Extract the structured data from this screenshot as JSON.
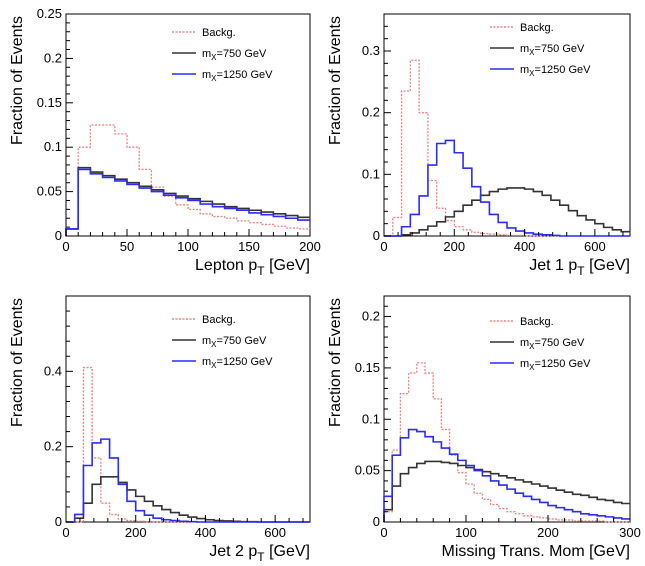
{
  "colors": {
    "background": "#ffffff",
    "axes": "#000000"
  },
  "chart_data": [
    {
      "type": "histogram",
      "xlabel": "Lepton p",
      "xlabel_sub": "T",
      "xlabel_unit": " [GeV]",
      "ylabel": "Fraction of Events",
      "xlim": [
        0,
        200
      ],
      "ylim": [
        0,
        0.25
      ],
      "xticks": [
        0,
        50,
        100,
        150,
        200
      ],
      "yticks": [
        0,
        0.05,
        0.1,
        0.15,
        0.2,
        0.25
      ],
      "ytick_labels": [
        "0",
        "0.05",
        "0.1",
        "0.15",
        "0.2",
        "0.25"
      ],
      "bin_edges": [
        0,
        10,
        20,
        30,
        40,
        50,
        60,
        70,
        80,
        90,
        100,
        110,
        120,
        130,
        140,
        150,
        160,
        170,
        180,
        190,
        200
      ],
      "legend_position": "top-right",
      "series": [
        {
          "name": "Backg.",
          "color": "#f08080",
          "dashed": true,
          "values": [
            0.008,
            0.1,
            0.125,
            0.125,
            0.115,
            0.1,
            0.075,
            0.055,
            0.045,
            0.035,
            0.03,
            0.025,
            0.022,
            0.02,
            0.017,
            0.015,
            0.013,
            0.011,
            0.009,
            0.008
          ]
        },
        {
          "name": "m_X=750 GeV",
          "label_main": "m",
          "label_sub": "X",
          "label_rest": "=750 GeV",
          "color": "#333333",
          "dashed": false,
          "values": [
            0.008,
            0.077,
            0.072,
            0.068,
            0.064,
            0.06,
            0.056,
            0.052,
            0.048,
            0.045,
            0.042,
            0.039,
            0.036,
            0.033,
            0.031,
            0.029,
            0.027,
            0.025,
            0.023,
            0.021
          ]
        },
        {
          "name": "m_X=1250 GeV",
          "label_main": "m",
          "label_sub": "X",
          "label_rest": "=1250 GeV",
          "color": "#2b2bff",
          "dashed": false,
          "values": [
            0.008,
            0.075,
            0.07,
            0.066,
            0.062,
            0.058,
            0.054,
            0.05,
            0.046,
            0.043,
            0.04,
            0.036,
            0.033,
            0.031,
            0.029,
            0.026,
            0.024,
            0.022,
            0.02,
            0.018
          ]
        }
      ]
    },
    {
      "type": "histogram",
      "xlabel": "Jet 1 p",
      "xlabel_sub": "T",
      "xlabel_unit": " [GeV]",
      "ylabel": "Fraction of Events",
      "xlim": [
        0,
        700
      ],
      "ylim": [
        0,
        0.36
      ],
      "xticks": [
        0,
        200,
        400,
        600
      ],
      "yticks": [
        0,
        0.1,
        0.2,
        0.3
      ],
      "ytick_labels": [
        "0",
        "0.1",
        "0.2",
        "0.3"
      ],
      "bin_edges": [
        0,
        25,
        50,
        75,
        100,
        125,
        150,
        175,
        200,
        225,
        250,
        275,
        300,
        325,
        350,
        375,
        400,
        425,
        450,
        475,
        500,
        525,
        550,
        575,
        600,
        625,
        650,
        675,
        700
      ],
      "legend_position": "top-right",
      "series": [
        {
          "name": "Backg.",
          "color": "#f08080",
          "dashed": true,
          "values": [
            0.0,
            0.03,
            0.235,
            0.285,
            0.2,
            0.09,
            0.045,
            0.025,
            0.015,
            0.01,
            0.006,
            0.004,
            0.003,
            0.002,
            0.001,
            0.001,
            0.0,
            0,
            0,
            0,
            0,
            0,
            0,
            0,
            0,
            0,
            0,
            0
          ]
        },
        {
          "name": "m_X=750 GeV",
          "label_main": "m",
          "label_sub": "X",
          "label_rest": "=750 GeV",
          "color": "#333333",
          "dashed": false,
          "values": [
            0.0,
            0.0,
            0.002,
            0.005,
            0.01,
            0.016,
            0.023,
            0.031,
            0.04,
            0.05,
            0.058,
            0.066,
            0.072,
            0.076,
            0.078,
            0.078,
            0.076,
            0.072,
            0.066,
            0.058,
            0.05,
            0.041,
            0.033,
            0.026,
            0.02,
            0.014,
            0.01,
            0.007
          ]
        },
        {
          "name": "m_X=1250 GeV",
          "label_main": "m",
          "label_sub": "X",
          "label_rest": "=1250 GeV",
          "color": "#2b2bff",
          "dashed": false,
          "values": [
            0.0,
            0.0,
            0.015,
            0.035,
            0.065,
            0.115,
            0.15,
            0.155,
            0.135,
            0.11,
            0.08,
            0.055,
            0.035,
            0.022,
            0.013,
            0.008,
            0.005,
            0.003,
            0.002,
            0.001,
            0,
            0,
            0,
            0,
            0,
            0,
            0,
            0
          ]
        }
      ]
    },
    {
      "type": "histogram",
      "xlabel": "Jet 2 p",
      "xlabel_sub": "T",
      "xlabel_unit": " [GeV]",
      "ylabel": "Fraction of Events",
      "xlim": [
        0,
        700
      ],
      "ylim": [
        0,
        0.6
      ],
      "xticks": [
        0,
        200,
        400,
        600
      ],
      "yticks": [
        0,
        0.2,
        0.4
      ],
      "ytick_labels": [
        "0",
        "0.2",
        "0.4"
      ],
      "bin_edges": [
        0,
        25,
        50,
        75,
        100,
        125,
        150,
        175,
        200,
        225,
        250,
        275,
        300,
        325,
        350,
        375,
        400,
        425,
        450,
        475,
        500,
        525,
        550,
        575,
        600,
        625,
        650,
        675,
        700
      ],
      "legend_position": "top-right",
      "series": [
        {
          "name": "Backg.",
          "color": "#f08080",
          "dashed": true,
          "values": [
            0.0,
            0.0,
            0.41,
            0.17,
            0.05,
            0.02,
            0.008,
            0.004,
            0.002,
            0.001,
            0,
            0,
            0,
            0,
            0,
            0,
            0,
            0,
            0,
            0,
            0,
            0,
            0,
            0,
            0,
            0,
            0,
            0
          ]
        },
        {
          "name": "m_X=750 GeV",
          "label_main": "m",
          "label_sub": "X",
          "label_rest": "=750 GeV",
          "color": "#333333",
          "dashed": false,
          "values": [
            0.0,
            0.01,
            0.05,
            0.1,
            0.12,
            0.12,
            0.105,
            0.085,
            0.068,
            0.055,
            0.043,
            0.033,
            0.025,
            0.018,
            0.013,
            0.009,
            0.006,
            0.004,
            0.003,
            0.002,
            0.001,
            0.001,
            0,
            0,
            0,
            0,
            0,
            0
          ]
        },
        {
          "name": "m_X=1250 GeV",
          "label_main": "m",
          "label_sub": "X",
          "label_rest": "=1250 GeV",
          "color": "#2b2bff",
          "dashed": false,
          "values": [
            0.0,
            0.02,
            0.15,
            0.21,
            0.22,
            0.17,
            0.1,
            0.055,
            0.03,
            0.018,
            0.01,
            0.006,
            0.004,
            0.002,
            0.001,
            0,
            0,
            0,
            0,
            0,
            0,
            0,
            0,
            0,
            0,
            0,
            0,
            0
          ]
        }
      ]
    },
    {
      "type": "histogram",
      "xlabel": "Missing Trans. Mom [GeV]",
      "xlabel_sub": "",
      "xlabel_unit": "",
      "ylabel": "Fraction of Events",
      "xlim": [
        0,
        300
      ],
      "ylim": [
        0,
        0.22
      ],
      "xticks": [
        0,
        100,
        200,
        300
      ],
      "yticks": [
        0,
        0.05,
        0.1,
        0.15,
        0.2
      ],
      "ytick_labels": [
        "0",
        "0.05",
        "0.1",
        "0.15",
        "0.2"
      ],
      "bin_edges": [
        0,
        10,
        20,
        30,
        40,
        50,
        60,
        70,
        80,
        90,
        100,
        110,
        120,
        130,
        140,
        150,
        160,
        170,
        180,
        190,
        200,
        210,
        220,
        230,
        240,
        250,
        260,
        270,
        280,
        290,
        300
      ],
      "legend_position": "top-right",
      "series": [
        {
          "name": "Backg.",
          "color": "#f08080",
          "dashed": true,
          "values": [
            0.01,
            0.07,
            0.125,
            0.145,
            0.155,
            0.145,
            0.12,
            0.09,
            0.065,
            0.048,
            0.037,
            0.028,
            0.022,
            0.017,
            0.013,
            0.01,
            0.008,
            0.006,
            0.005,
            0.004,
            0.003,
            0.002,
            0.002,
            0.001,
            0.001,
            0.001,
            0.001,
            0,
            0,
            0
          ]
        },
        {
          "name": "m_X=750 GeV",
          "label_main": "m",
          "label_sub": "X",
          "label_rest": "=750 GeV",
          "color": "#333333",
          "dashed": false,
          "values": [
            0.012,
            0.035,
            0.047,
            0.053,
            0.057,
            0.059,
            0.059,
            0.058,
            0.057,
            0.055,
            0.053,
            0.051,
            0.049,
            0.047,
            0.045,
            0.043,
            0.041,
            0.039,
            0.037,
            0.035,
            0.033,
            0.031,
            0.029,
            0.027,
            0.026,
            0.024,
            0.022,
            0.021,
            0.019,
            0.018
          ]
        },
        {
          "name": "m_X=1250 GeV",
          "label_main": "m",
          "label_sub": "X",
          "label_rest": "=1250 GeV",
          "color": "#2b2bff",
          "dashed": false,
          "values": [
            0.025,
            0.065,
            0.082,
            0.09,
            0.088,
            0.083,
            0.078,
            0.072,
            0.066,
            0.06,
            0.055,
            0.05,
            0.045,
            0.04,
            0.036,
            0.032,
            0.028,
            0.025,
            0.022,
            0.019,
            0.016,
            0.014,
            0.012,
            0.01,
            0.008,
            0.007,
            0.006,
            0.005,
            0.004,
            0.003
          ]
        }
      ]
    }
  ]
}
